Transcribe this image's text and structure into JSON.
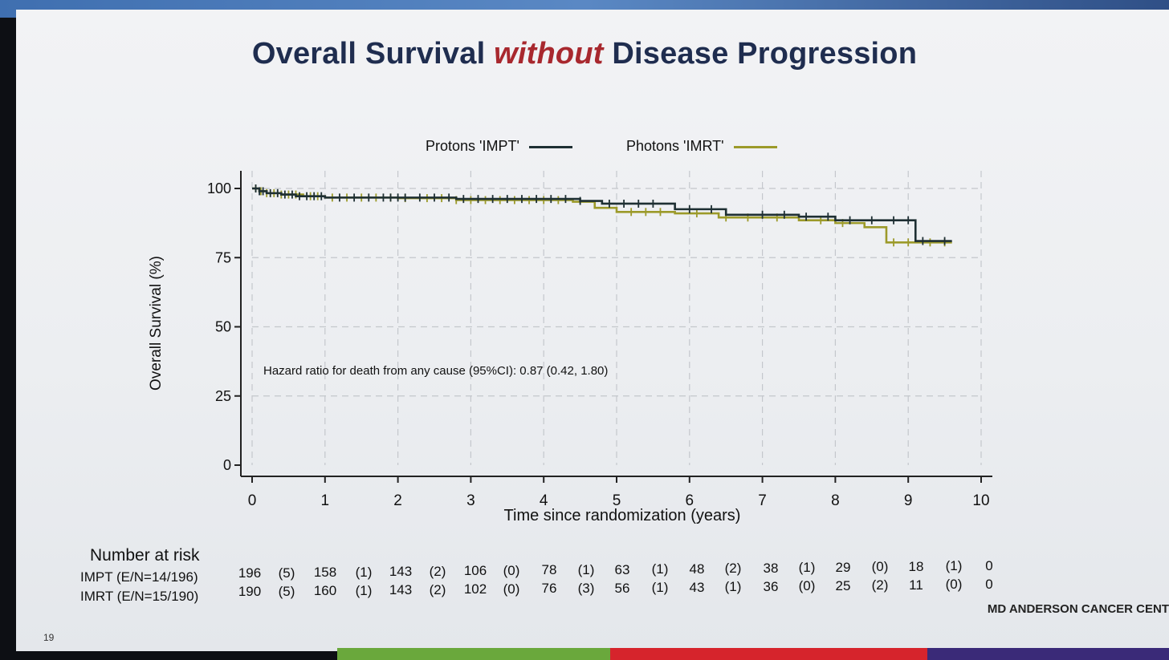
{
  "slide": {
    "title_pre": "Overall Survival ",
    "title_em": "without",
    "title_post": " Disease Progression",
    "footer": "MD ANDERSON CANCER CENT",
    "page_number": "19"
  },
  "colors": {
    "impt": "#1e2f33",
    "imrt": "#9c9a2a",
    "title": "#1f2d4f",
    "accent": "#a8282e"
  },
  "risk_table": {
    "title": "Number at risk",
    "rows": [
      {
        "label": "IMPT (E/N=14/196)",
        "cells": [
          "196",
          "(5)",
          "158",
          "(1)",
          "143",
          "(2)",
          "106",
          "(0)",
          "78",
          "(1)",
          "63",
          "(1)",
          "48",
          "(2)",
          "38",
          "(1)",
          "29",
          "(0)",
          "18",
          "(1)",
          "0"
        ]
      },
      {
        "label": "IMRT (E/N=15/190)",
        "cells": [
          "190",
          "(5)",
          "160",
          "(1)",
          "143",
          "(2)",
          "102",
          "(0)",
          "76",
          "(3)",
          "56",
          "(1)",
          "43",
          "(1)",
          "36",
          "(0)",
          "25",
          "(2)",
          "11",
          "(0)",
          "0"
        ]
      }
    ]
  },
  "chart_data": {
    "type": "line",
    "title": "",
    "xlabel": "Time since randomization (years)",
    "ylabel": "Overall Survival (%)",
    "xlim": [
      0,
      10
    ],
    "ylim": [
      0,
      100
    ],
    "x_ticks": [
      0,
      1,
      2,
      3,
      4,
      5,
      6,
      7,
      8,
      9,
      10
    ],
    "y_ticks": [
      0,
      25,
      50,
      75,
      100
    ],
    "grid": true,
    "legend_position": "top",
    "annotation": "Hazard ratio for death from any cause (95%CI): 0.87 (0.42, 1.80)",
    "series": [
      {
        "name": "Protons 'IMPT'",
        "step": true,
        "x": [
          0,
          0.1,
          0.2,
          0.4,
          0.6,
          1.0,
          2.0,
          2.8,
          4.5,
          4.8,
          5.8,
          6.5,
          7.5,
          8.0,
          9.1,
          9.6
        ],
        "y": [
          100,
          99,
          98.3,
          97.8,
          97.2,
          96.7,
          96.7,
          96.2,
          95.5,
          94.5,
          92.5,
          90.5,
          89.8,
          88.5,
          81,
          81
        ],
        "censor_x": [
          0.05,
          0.1,
          0.15,
          0.25,
          0.35,
          0.45,
          0.55,
          0.65,
          0.75,
          0.85,
          0.95,
          1.2,
          1.4,
          1.6,
          1.8,
          1.9,
          2.0,
          2.1,
          2.3,
          2.5,
          2.7,
          2.9,
          3.1,
          3.3,
          3.5,
          3.7,
          3.9,
          4.1,
          4.3,
          4.5,
          4.9,
          5.1,
          5.3,
          5.5,
          6.0,
          6.3,
          7.0,
          7.3,
          7.6,
          7.9,
          8.2,
          8.5,
          8.8,
          9.0,
          9.2,
          9.5
        ]
      },
      {
        "name": "Photons 'IMRT'",
        "step": true,
        "x": [
          0,
          0.1,
          0.2,
          0.4,
          0.7,
          1.0,
          2.0,
          2.8,
          4.4,
          4.7,
          5.0,
          5.8,
          6.4,
          7.5,
          8.0,
          8.4,
          8.7,
          9.6
        ],
        "y": [
          100,
          99,
          98.3,
          97.8,
          97.2,
          96.7,
          96.5,
          95.8,
          95.2,
          93.0,
          91.5,
          91.0,
          89.5,
          88.5,
          87.5,
          86.0,
          80.5,
          80.5
        ],
        "censor_x": [
          0.05,
          0.12,
          0.2,
          0.3,
          0.4,
          0.5,
          0.6,
          0.8,
          0.9,
          1.1,
          1.3,
          1.5,
          1.7,
          1.9,
          2.1,
          2.4,
          2.6,
          2.8,
          3.0,
          3.2,
          3.4,
          3.6,
          3.8,
          4.0,
          4.2,
          5.2,
          5.4,
          5.6,
          6.1,
          6.5,
          6.8,
          7.2,
          7.8,
          8.1,
          8.8,
          9.0,
          9.3,
          9.5
        ]
      }
    ]
  }
}
